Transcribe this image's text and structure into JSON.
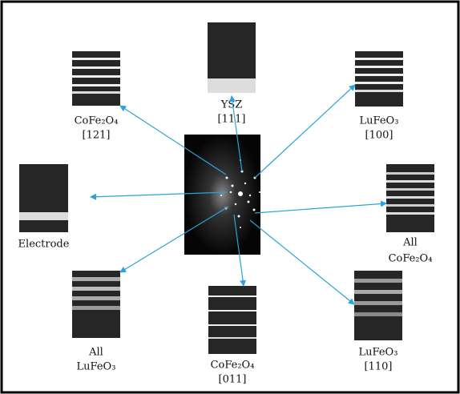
{
  "panels": [
    {
      "lines": [
        "YSZ",
        "[111]"
      ]
    },
    {
      "lines": [
        "CoFe₂O₄",
        "[121]"
      ]
    },
    {
      "lines": [
        "LuFeO₃",
        "[100]"
      ]
    },
    {
      "lines": [
        "Electrode"
      ]
    },
    {
      "lines": [
        "All",
        "CoFe₂O₄"
      ]
    },
    {
      "lines": [
        "All",
        "LuFeO₃"
      ]
    },
    {
      "lines": [
        "CoFe₂O₄",
        "[011]"
      ]
    },
    {
      "lines": [
        "LuFeO₃",
        "[110]"
      ]
    }
  ]
}
